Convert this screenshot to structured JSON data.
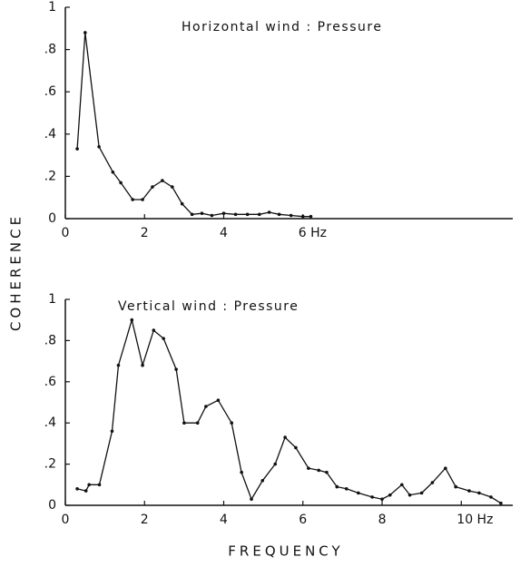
{
  "chart_data": [
    {
      "type": "line",
      "title": "Horizontal wind : Pressure",
      "y_label": "COHERENCE",
      "color": "#111111",
      "x": [
        0.3,
        0.5,
        0.85,
        1.2,
        1.4,
        1.7,
        1.95,
        2.2,
        2.45,
        2.7,
        2.95,
        3.2,
        3.45,
        3.7,
        4.0,
        4.3,
        4.6,
        4.9,
        5.15,
        5.4,
        5.7,
        6.0,
        6.2
      ],
      "values": [
        0.33,
        0.88,
        0.34,
        0.22,
        0.17,
        0.09,
        0.09,
        0.15,
        0.18,
        0.15,
        0.07,
        0.02,
        0.025,
        0.015,
        0.025,
        0.02,
        0.02,
        0.02,
        0.03,
        0.02,
        0.015,
        0.01,
        0.01
      ],
      "xlim": [
        0,
        11.3
      ],
      "ylim": [
        0,
        1
      ],
      "xticks": [
        0,
        2,
        4,
        {
          "value": 6,
          "label": "6 Hz"
        }
      ],
      "yticks": [
        0,
        {
          "value": 0.2,
          "label": ".2"
        },
        {
          "value": 0.4,
          "label": ".4"
        },
        {
          "value": 0.6,
          "label": ".6"
        },
        {
          "value": 0.8,
          "label": ".8"
        },
        1
      ]
    },
    {
      "type": "line",
      "title": "Vertical wind : Pressure",
      "x_label": "FREQUENCY",
      "color": "#111111",
      "x": [
        0.3,
        0.52,
        0.6,
        0.86,
        1.18,
        1.34,
        1.68,
        1.95,
        2.23,
        2.48,
        2.8,
        3.0,
        3.34,
        3.55,
        3.86,
        4.2,
        4.45,
        4.7,
        4.98,
        5.3,
        5.55,
        5.82,
        6.14,
        6.4,
        6.6,
        6.86,
        7.1,
        7.4,
        7.75,
        8.0,
        8.2,
        8.5,
        8.7,
        9.0,
        9.27,
        9.6,
        9.86,
        10.2,
        10.45,
        10.75,
        11.0
      ],
      "values": [
        0.08,
        0.07,
        0.1,
        0.1,
        0.36,
        0.68,
        0.9,
        0.68,
        0.85,
        0.81,
        0.66,
        0.4,
        0.4,
        0.48,
        0.51,
        0.4,
        0.16,
        0.03,
        0.12,
        0.2,
        0.33,
        0.28,
        0.18,
        0.17,
        0.16,
        0.09,
        0.08,
        0.06,
        0.04,
        0.03,
        0.05,
        0.1,
        0.05,
        0.06,
        0.11,
        0.18,
        0.09,
        0.07,
        0.06,
        0.04,
        0.01
      ],
      "xlim": [
        0,
        11.3
      ],
      "ylim": [
        0,
        1
      ],
      "xticks": [
        0,
        2,
        4,
        6,
        8,
        {
          "value": 10,
          "label": "10 Hz"
        }
      ],
      "yticks": [
        0,
        {
          "value": 0.2,
          "label": ".2"
        },
        {
          "value": 0.4,
          "label": ".4"
        },
        {
          "value": 0.6,
          "label": ".6"
        },
        {
          "value": 0.8,
          "label": ".8"
        },
        1
      ]
    }
  ]
}
